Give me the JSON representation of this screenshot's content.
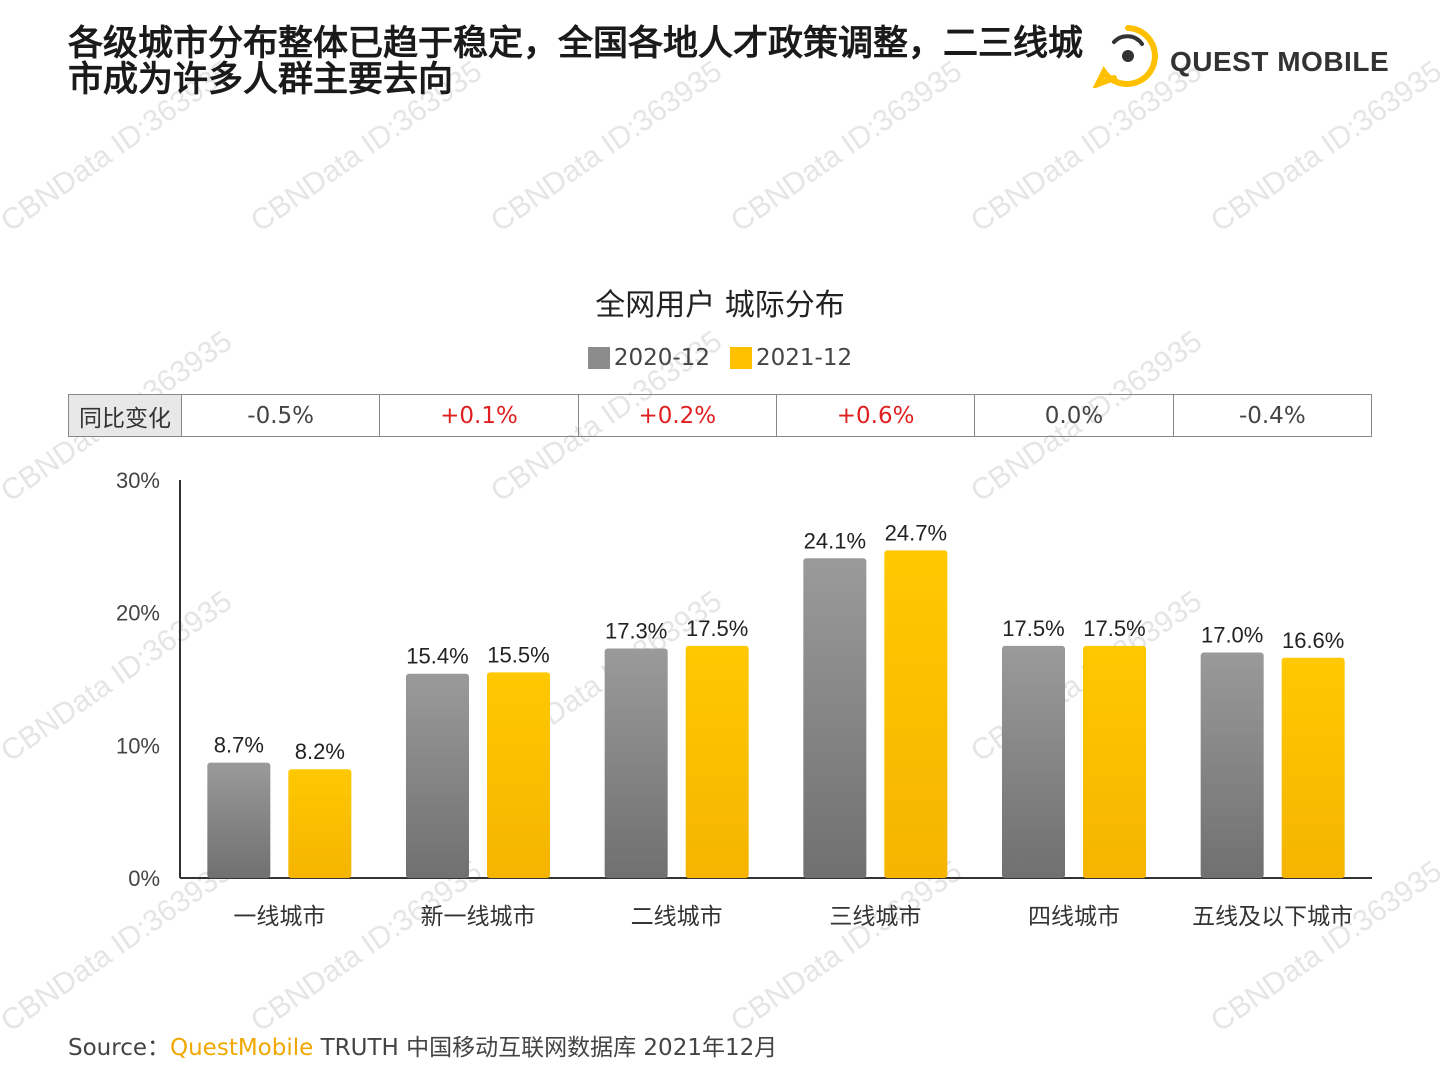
{
  "headline": "各级城市分布整体已趋于稳定，全国各地人才政策调整，二三线城市成为许多人群主要去向",
  "logo": {
    "text": "QUEST MOBILE",
    "icon": "questmobile-logo-icon"
  },
  "watermark": "CBNData ID:363935",
  "yoy": {
    "label": "同比变化",
    "values": [
      "-0.5%",
      "+0.1%",
      "+0.2%",
      "+0.6%",
      "0.0%",
      "-0.4%"
    ]
  },
  "colors": {
    "series_2020": "#8c8c8c",
    "series_2021": "#ffc000",
    "positive": "#e02020",
    "brand": "#f0a800"
  },
  "chart_data": {
    "type": "bar",
    "title": "全网用户 城际分布",
    "categories": [
      "一线城市",
      "新一线城市",
      "二线城市",
      "三线城市",
      "四线城市",
      "五线及以下城市"
    ],
    "series": [
      {
        "name": "2020-12",
        "values": [
          8.7,
          15.4,
          17.3,
          24.1,
          17.5,
          17.0
        ],
        "labels": [
          "8.7%",
          "15.4%",
          "17.3%",
          "24.1%",
          "17.5%",
          "17.0%"
        ]
      },
      {
        "name": "2021-12",
        "values": [
          8.2,
          15.5,
          17.5,
          24.7,
          17.5,
          16.6
        ],
        "labels": [
          "8.2%",
          "15.5%",
          "17.5%",
          "24.7%",
          "17.5%",
          "16.6%"
        ]
      }
    ],
    "yticks": [
      "0%",
      "10%",
      "20%",
      "30%"
    ],
    "ylim": [
      0,
      30
    ],
    "legend": "top-center",
    "grid": false
  },
  "source": {
    "prefix": "Source：",
    "brand": "QuestMobile",
    "rest": " TRUTH 中国移动互联网数据库 2021年12月"
  }
}
